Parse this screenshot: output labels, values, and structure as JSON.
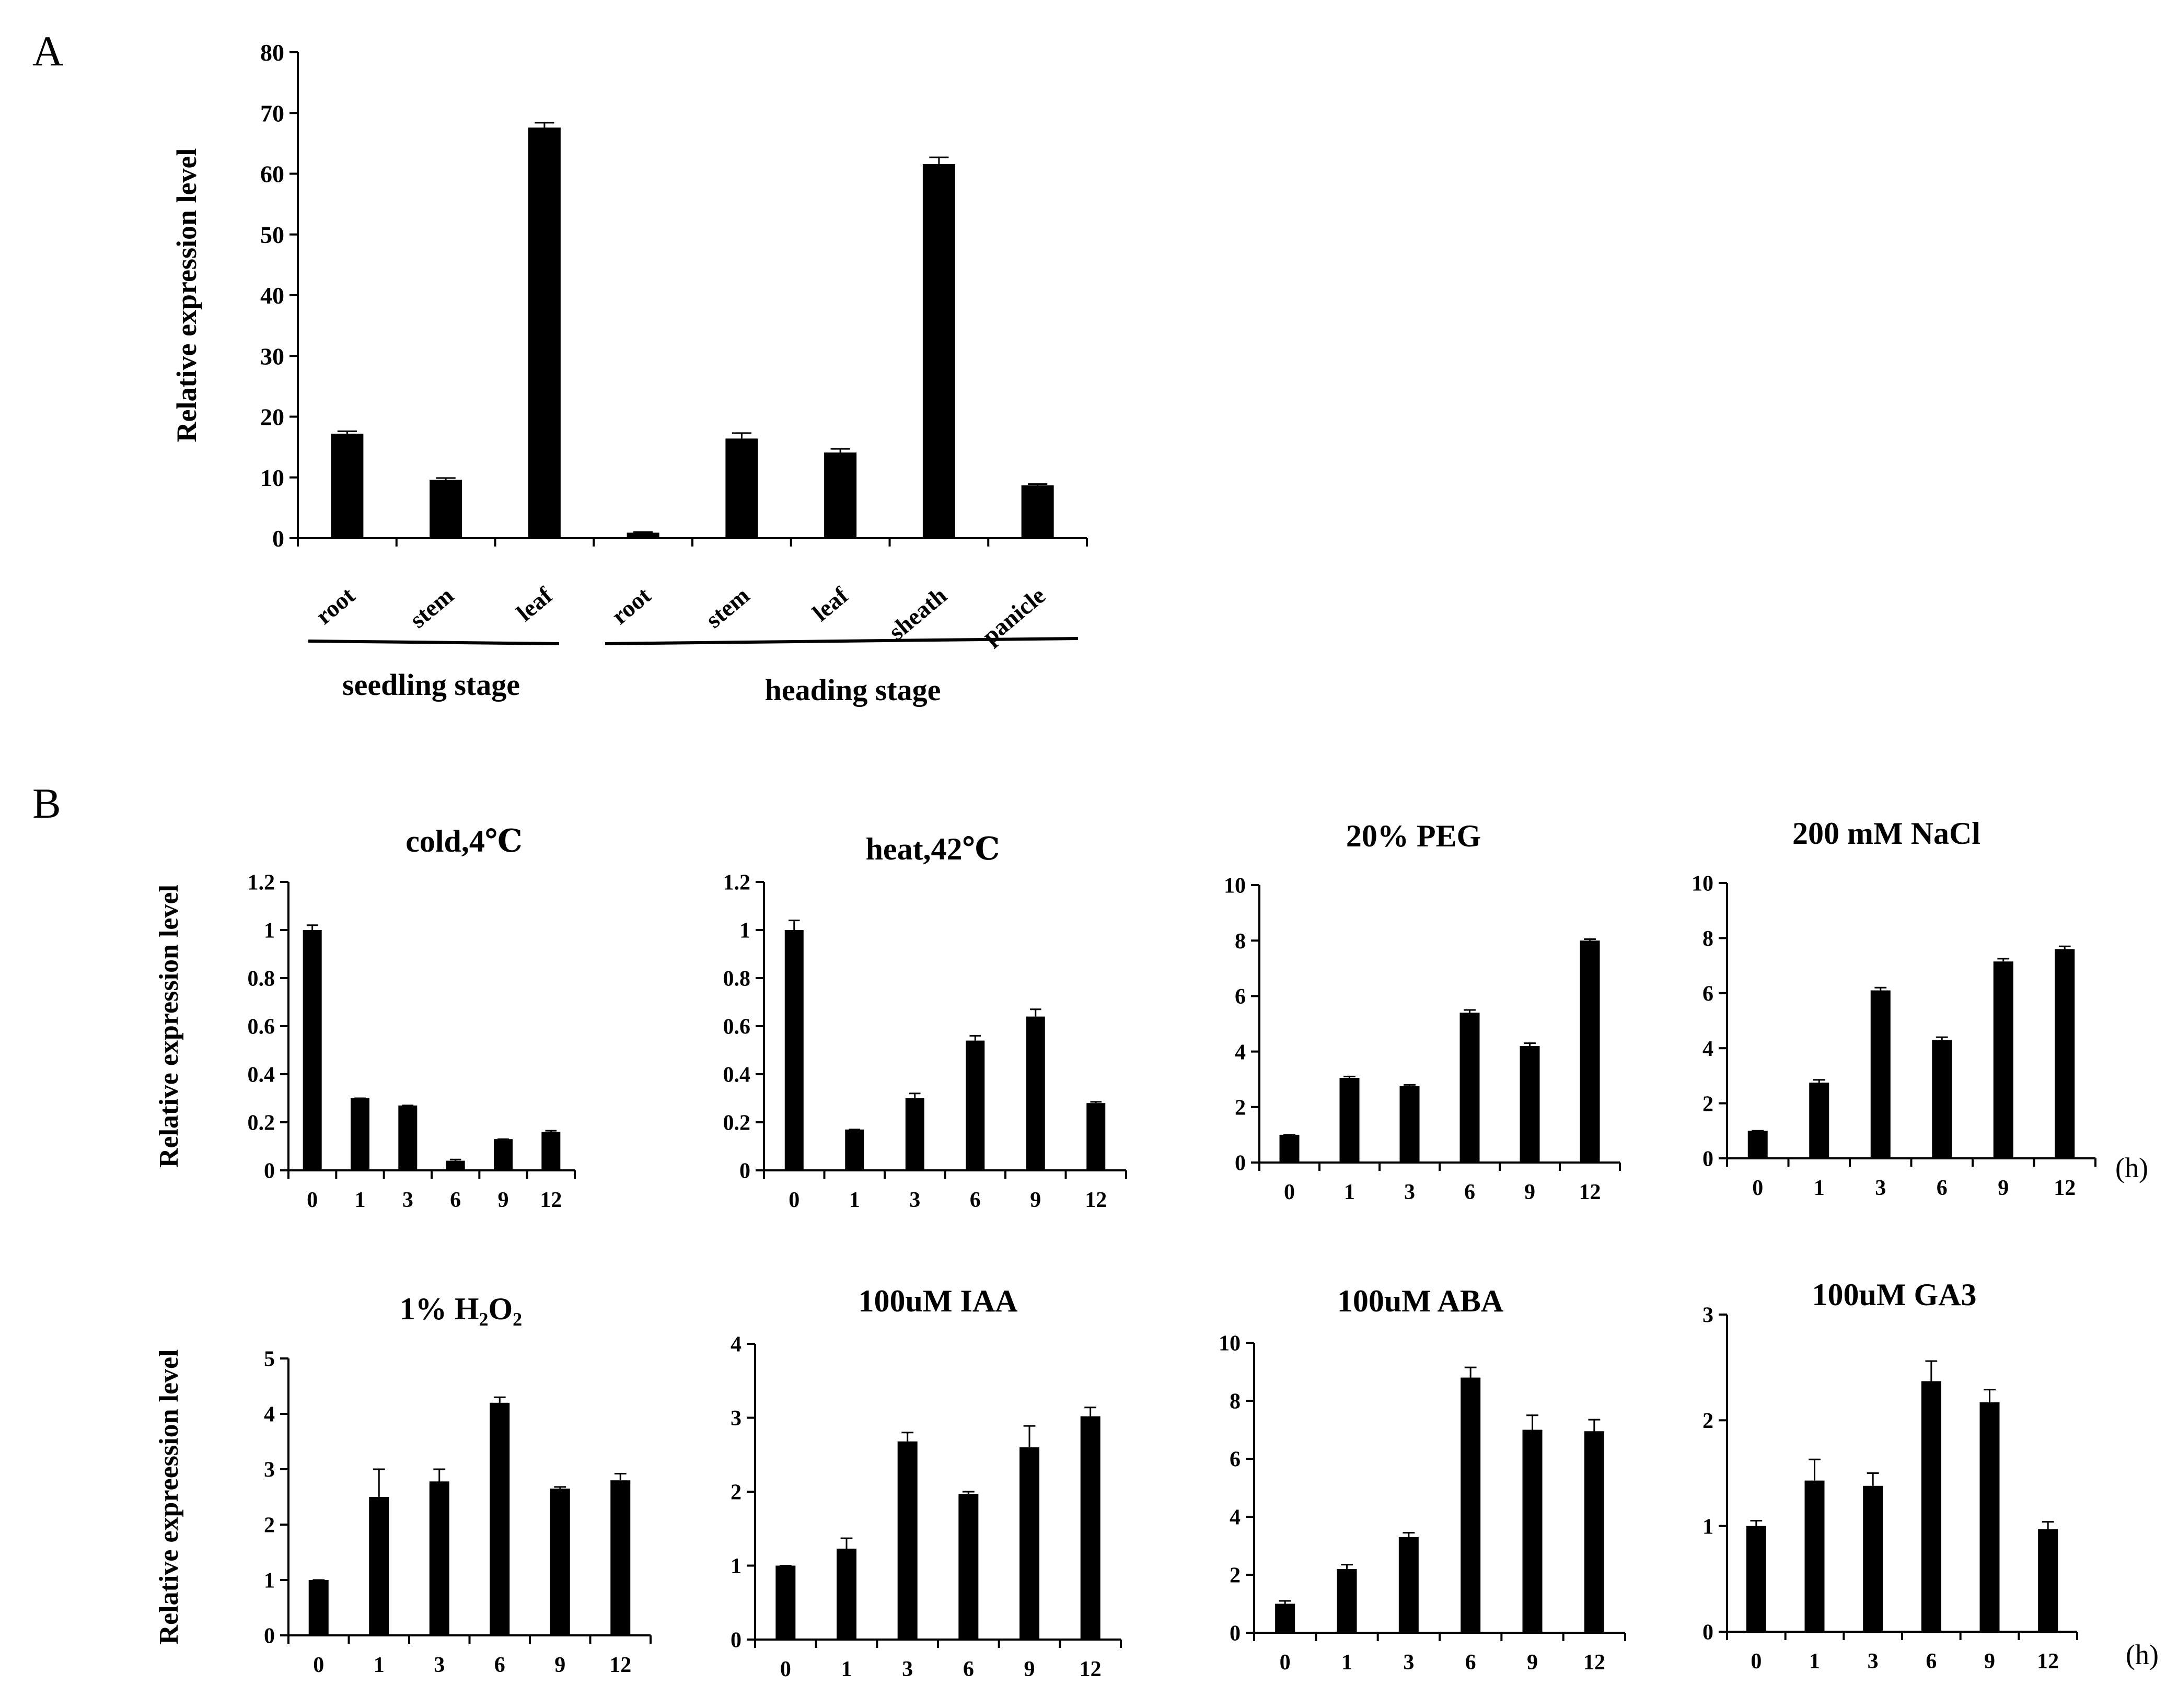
{
  "panels": {
    "a": {
      "label": "A"
    },
    "b": {
      "label": "B"
    }
  },
  "hours_unit": "(h)",
  "groups": {
    "seedling": "seedling stage",
    "heading": "heading stage"
  },
  "chart_data": [
    {
      "id": "tissue",
      "type": "bar",
      "title": "",
      "ylabel": "Relative  expression  level",
      "ylim": [
        0,
        80
      ],
      "yticks": [
        0,
        10,
        20,
        30,
        40,
        50,
        60,
        70,
        80
      ],
      "categories": [
        "root",
        "stem",
        "leaf",
        "root",
        "stem",
        "leaf",
        "sheath",
        "panicle"
      ],
      "values": [
        17.2,
        9.6,
        67.6,
        0.9,
        16.4,
        14.1,
        61.6,
        8.7
      ],
      "errors": [
        0.4,
        0.3,
        0.8,
        0.1,
        0.9,
        0.6,
        1.1,
        0.2
      ]
    },
    {
      "id": "cold",
      "type": "bar",
      "title": "cold,4℃",
      "ylabel": "Relative  expression  level",
      "ylim": [
        0,
        1.2
      ],
      "yticks": [
        0,
        0.2,
        0.4,
        0.6,
        0.8,
        1,
        1.2
      ],
      "categories": [
        "0",
        "1",
        "3",
        "6",
        "9",
        "12"
      ],
      "values": [
        1.0,
        0.3,
        0.27,
        0.04,
        0.13,
        0.16
      ],
      "errors": [
        0.02,
        0.0,
        0.0,
        0.005,
        0.0,
        0.005
      ]
    },
    {
      "id": "heat",
      "type": "bar",
      "title": "heat,42℃",
      "ylabel": "",
      "ylim": [
        0,
        1.2
      ],
      "yticks": [
        0,
        0.2,
        0.4,
        0.6,
        0.8,
        1,
        1.2
      ],
      "categories": [
        "0",
        "1",
        "3",
        "6",
        "9",
        "12"
      ],
      "values": [
        1.0,
        0.17,
        0.3,
        0.54,
        0.64,
        0.28
      ],
      "errors": [
        0.04,
        0.0,
        0.02,
        0.02,
        0.03,
        0.005
      ]
    },
    {
      "id": "peg",
      "type": "bar",
      "title": "20% PEG",
      "ylabel": "",
      "ylim": [
        0,
        10
      ],
      "yticks": [
        0,
        2,
        4,
        6,
        8,
        10
      ],
      "categories": [
        "0",
        "1",
        "3",
        "6",
        "9",
        "12"
      ],
      "values": [
        1.0,
        3.05,
        2.75,
        5.4,
        4.2,
        8.0
      ],
      "errors": [
        0.0,
        0.05,
        0.05,
        0.1,
        0.1,
        0.05
      ]
    },
    {
      "id": "nacl",
      "type": "bar",
      "title": "200 mM  NaCl",
      "ylabel": "",
      "ylim": [
        0,
        10
      ],
      "yticks": [
        0,
        2,
        4,
        6,
        8,
        10
      ],
      "categories": [
        "0",
        "1",
        "3",
        "6",
        "9",
        "12"
      ],
      "values": [
        1.0,
        2.75,
        6.1,
        4.3,
        7.15,
        7.6
      ],
      "errors": [
        0.0,
        0.1,
        0.1,
        0.1,
        0.1,
        0.1
      ]
    },
    {
      "id": "h2o2",
      "type": "bar",
      "title": "1% H₂O₂",
      "ylabel": "Relative  expreession  level",
      "ylim": [
        0,
        5
      ],
      "yticks": [
        0,
        1,
        2,
        3,
        4,
        5
      ],
      "categories": [
        "0",
        "1",
        "3",
        "6",
        "9",
        "12"
      ],
      "values": [
        1.0,
        2.5,
        2.78,
        4.2,
        2.65,
        2.8
      ],
      "errors": [
        0.0,
        0.5,
        0.22,
        0.1,
        0.03,
        0.12
      ]
    },
    {
      "id": "iaa",
      "type": "bar",
      "title": "100uM IAA",
      "ylabel": "",
      "ylim": [
        0,
        4
      ],
      "yticks": [
        0,
        1,
        2,
        3,
        4
      ],
      "categories": [
        "0",
        "1",
        "3",
        "6",
        "9",
        "12"
      ],
      "values": [
        1.0,
        1.23,
        2.68,
        1.97,
        2.6,
        3.02
      ],
      "errors": [
        0.0,
        0.14,
        0.12,
        0.03,
        0.29,
        0.12
      ]
    },
    {
      "id": "aba",
      "type": "bar",
      "title": "100uM ABA",
      "ylabel": "",
      "ylim": [
        0,
        10
      ],
      "yticks": [
        0,
        2,
        4,
        6,
        8,
        10
      ],
      "categories": [
        "0",
        "1",
        "3",
        "6",
        "9",
        "12"
      ],
      "values": [
        1.0,
        2.2,
        3.3,
        8.8,
        7.0,
        6.95
      ],
      "errors": [
        0.1,
        0.15,
        0.15,
        0.35,
        0.5,
        0.4
      ]
    },
    {
      "id": "ga3",
      "type": "bar",
      "title": "100uM GA3",
      "ylabel": "",
      "ylim": [
        0,
        3
      ],
      "yticks": [
        0,
        1,
        2,
        3
      ],
      "categories": [
        "0",
        "1",
        "3",
        "6",
        "9",
        "12"
      ],
      "values": [
        1.0,
        1.43,
        1.38,
        2.37,
        2.17,
        0.97
      ],
      "errors": [
        0.05,
        0.2,
        0.12,
        0.19,
        0.12,
        0.07
      ]
    }
  ]
}
